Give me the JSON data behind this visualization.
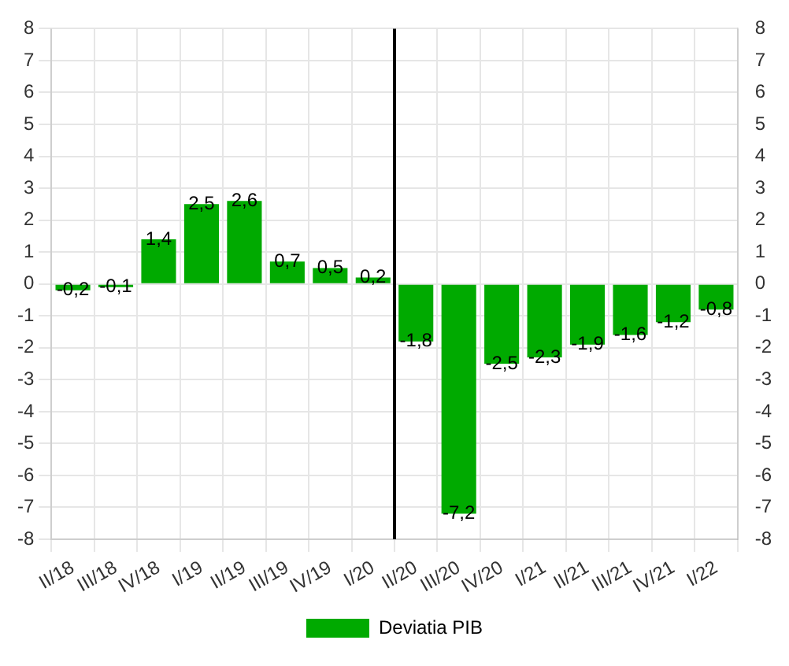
{
  "chart_data": {
    "type": "bar",
    "categories": [
      "II/18",
      "III/18",
      "IV/18",
      "I/19",
      "II/19",
      "III/19",
      "IV/19",
      "I/20",
      "II/20",
      "III/20",
      "IV/20",
      "I/21",
      "II/21",
      "III/21",
      "IV/21",
      "I/22"
    ],
    "series": [
      {
        "name": "Deviatia PIB",
        "color": "#00aa00",
        "values": [
          -0.2,
          -0.1,
          1.4,
          2.5,
          2.6,
          0.7,
          0.5,
          0.2,
          -1.8,
          -7.2,
          -2.5,
          -2.3,
          -1.9,
          -1.6,
          -1.2,
          -0.8
        ],
        "value_labels": [
          "-0,2",
          "-0,1",
          "1,4",
          "2,5",
          "2,6",
          "0,7",
          "0,5",
          "0,2",
          "-1,8",
          "-7,2",
          "-2,5",
          "-2,3",
          "-1,9",
          "-1,6",
          "-1,2",
          "-0,8"
        ]
      }
    ],
    "ylim": [
      -8,
      8
    ],
    "yticks": [
      -8,
      -7,
      -6,
      -5,
      -4,
      -3,
      -2,
      -1,
      0,
      1,
      2,
      3,
      4,
      5,
      6,
      7,
      8
    ],
    "y2lim": [
      -8,
      8
    ],
    "y2ticks": [
      -8,
      -7,
      -6,
      -5,
      -4,
      -3,
      -2,
      -1,
      0,
      1,
      2,
      3,
      4,
      5,
      6,
      7,
      8
    ],
    "ref_lines": [
      {
        "axis": "x",
        "value": "II/20",
        "color": "#000000"
      }
    ],
    "grid": true,
    "legend": "bottom"
  }
}
